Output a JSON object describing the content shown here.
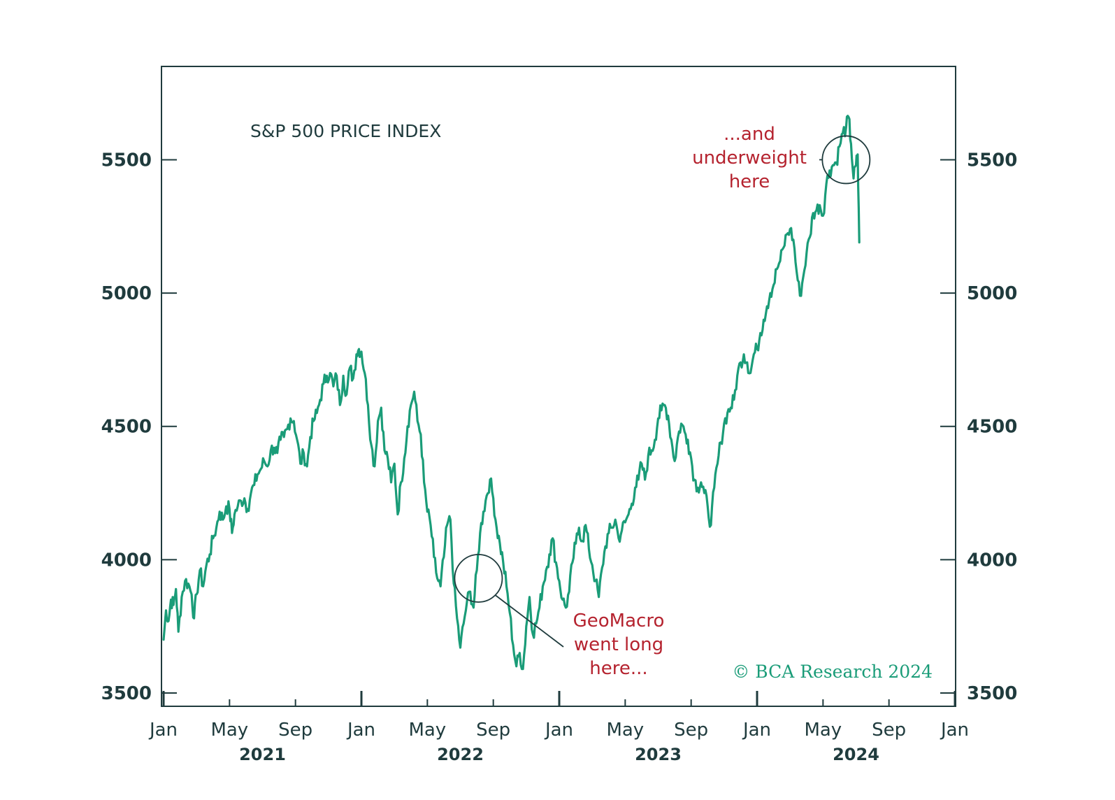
{
  "colors": {
    "series": "#1a9c78",
    "text": "#1f3b3d",
    "annotation": "#b5232f",
    "credit": "#1a9c78"
  },
  "chart_data": {
    "type": "line",
    "title": "S&P 500 PRICE INDEX",
    "xlabel": "",
    "ylabel": "",
    "x_range": [
      "2021-01",
      "2025-01"
    ],
    "ylim": [
      3450,
      5850
    ],
    "yticks": [
      3500,
      4000,
      4500,
      5000,
      5500
    ],
    "ytick_labels": [
      "3500",
      "4000",
      "4500",
      "5000",
      "5500"
    ],
    "xticks": [
      {
        "label": "Jan",
        "t": 0,
        "major": true
      },
      {
        "label": "May",
        "t": 4,
        "major": false
      },
      {
        "label": "Sep",
        "t": 8,
        "major": false
      },
      {
        "label": "Jan",
        "t": 12,
        "major": true
      },
      {
        "label": "May",
        "t": 16,
        "major": false
      },
      {
        "label": "Sep",
        "t": 20,
        "major": false
      },
      {
        "label": "Jan",
        "t": 24,
        "major": true
      },
      {
        "label": "May",
        "t": 28,
        "major": false
      },
      {
        "label": "Sep",
        "t": 32,
        "major": false
      },
      {
        "label": "Jan",
        "t": 36,
        "major": true
      },
      {
        "label": "May",
        "t": 40,
        "major": false
      },
      {
        "label": "Sep",
        "t": 44,
        "major": false
      },
      {
        "label": "Jan",
        "t": 48,
        "major": true
      }
    ],
    "years": [
      {
        "label": "2021",
        "t": 6
      },
      {
        "label": "2022",
        "t": 18
      },
      {
        "label": "2023",
        "t": 30
      },
      {
        "label": "2024",
        "t": 42
      }
    ],
    "grid": false,
    "series": [
      {
        "name": "S&P 500",
        "x_unit": "months since Jan 2021",
        "points": [
          [
            0.0,
            3700
          ],
          [
            0.15,
            3810
          ],
          [
            0.3,
            3770
          ],
          [
            0.45,
            3850
          ],
          [
            0.6,
            3830
          ],
          [
            0.75,
            3890
          ],
          [
            0.9,
            3730
          ],
          [
            1.1,
            3860
          ],
          [
            1.3,
            3920
          ],
          [
            1.5,
            3910
          ],
          [
            1.7,
            3870
          ],
          [
            1.85,
            3780
          ],
          [
            2.0,
            3870
          ],
          [
            2.2,
            3960
          ],
          [
            2.4,
            3900
          ],
          [
            2.6,
            3980
          ],
          [
            2.8,
            4020
          ],
          [
            3.0,
            4080
          ],
          [
            3.2,
            4120
          ],
          [
            3.4,
            4180
          ],
          [
            3.6,
            4150
          ],
          [
            3.8,
            4200
          ],
          [
            4.0,
            4190
          ],
          [
            4.15,
            4100
          ],
          [
            4.3,
            4170
          ],
          [
            4.5,
            4200
          ],
          [
            4.7,
            4220
          ],
          [
            4.9,
            4230
          ],
          [
            5.1,
            4190
          ],
          [
            5.3,
            4250
          ],
          [
            5.5,
            4280
          ],
          [
            5.7,
            4320
          ],
          [
            5.9,
            4340
          ],
          [
            6.1,
            4370
          ],
          [
            6.3,
            4350
          ],
          [
            6.5,
            4410
          ],
          [
            6.7,
            4420
          ],
          [
            6.9,
            4400
          ],
          [
            7.1,
            4450
          ],
          [
            7.3,
            4460
          ],
          [
            7.5,
            4490
          ],
          [
            7.7,
            4530
          ],
          [
            7.9,
            4520
          ],
          [
            8.1,
            4450
          ],
          [
            8.3,
            4360
          ],
          [
            8.5,
            4400
          ],
          [
            8.7,
            4350
          ],
          [
            8.9,
            4460
          ],
          [
            9.1,
            4520
          ],
          [
            9.3,
            4550
          ],
          [
            9.5,
            4600
          ],
          [
            9.7,
            4660
          ],
          [
            9.9,
            4690
          ],
          [
            10.1,
            4700
          ],
          [
            10.3,
            4650
          ],
          [
            10.5,
            4690
          ],
          [
            10.7,
            4580
          ],
          [
            10.9,
            4690
          ],
          [
            11.1,
            4620
          ],
          [
            11.3,
            4720
          ],
          [
            11.5,
            4680
          ],
          [
            11.7,
            4770
          ],
          [
            11.85,
            4790
          ],
          [
            12.0,
            4780
          ],
          [
            12.2,
            4700
          ],
          [
            12.4,
            4580
          ],
          [
            12.6,
            4430
          ],
          [
            12.8,
            4350
          ],
          [
            13.0,
            4520
          ],
          [
            13.2,
            4570
          ],
          [
            13.4,
            4410
          ],
          [
            13.6,
            4380
          ],
          [
            13.8,
            4290
          ],
          [
            14.0,
            4360
          ],
          [
            14.2,
            4170
          ],
          [
            14.4,
            4290
          ],
          [
            14.6,
            4380
          ],
          [
            14.8,
            4500
          ],
          [
            15.0,
            4580
          ],
          [
            15.2,
            4630
          ],
          [
            15.4,
            4520
          ],
          [
            15.6,
            4470
          ],
          [
            15.8,
            4290
          ],
          [
            16.0,
            4180
          ],
          [
            16.2,
            4130
          ],
          [
            16.4,
            4010
          ],
          [
            16.6,
            3930
          ],
          [
            16.8,
            3900
          ],
          [
            17.0,
            4010
          ],
          [
            17.2,
            4130
          ],
          [
            17.4,
            4150
          ],
          [
            17.6,
            3910
          ],
          [
            17.8,
            3780
          ],
          [
            18.0,
            3670
          ],
          [
            18.2,
            3760
          ],
          [
            18.4,
            3840
          ],
          [
            18.6,
            3880
          ],
          [
            18.8,
            3820
          ],
          [
            19.0,
            3960
          ],
          [
            19.2,
            4100
          ],
          [
            19.4,
            4180
          ],
          [
            19.6,
            4240
          ],
          [
            19.8,
            4300
          ],
          [
            20.0,
            4230
          ],
          [
            20.2,
            4120
          ],
          [
            20.4,
            4060
          ],
          [
            20.6,
            3990
          ],
          [
            20.8,
            3900
          ],
          [
            21.0,
            3800
          ],
          [
            21.2,
            3680
          ],
          [
            21.4,
            3600
          ],
          [
            21.6,
            3650
          ],
          [
            21.8,
            3590
          ],
          [
            22.0,
            3750
          ],
          [
            22.2,
            3860
          ],
          [
            22.4,
            3720
          ],
          [
            22.6,
            3760
          ],
          [
            22.8,
            3820
          ],
          [
            23.0,
            3900
          ],
          [
            23.2,
            3960
          ],
          [
            23.4,
            4020
          ],
          [
            23.6,
            4080
          ],
          [
            23.8,
            3990
          ],
          [
            24.0,
            3920
          ],
          [
            24.2,
            3850
          ],
          [
            24.4,
            3820
          ],
          [
            24.6,
            3880
          ],
          [
            24.8,
            3990
          ],
          [
            25.0,
            4060
          ],
          [
            25.2,
            4120
          ],
          [
            25.4,
            4070
          ],
          [
            25.6,
            4130
          ],
          [
            25.8,
            4040
          ],
          [
            26.0,
            3980
          ],
          [
            26.2,
            3920
          ],
          [
            26.4,
            3860
          ],
          [
            26.6,
            3970
          ],
          [
            26.8,
            4050
          ],
          [
            27.0,
            4100
          ],
          [
            27.2,
            4120
          ],
          [
            27.4,
            4150
          ],
          [
            27.6,
            4080
          ],
          [
            27.8,
            4110
          ],
          [
            28.0,
            4140
          ],
          [
            28.2,
            4170
          ],
          [
            28.4,
            4210
          ],
          [
            28.6,
            4270
          ],
          [
            28.8,
            4300
          ],
          [
            29.0,
            4360
          ],
          [
            29.2,
            4300
          ],
          [
            29.4,
            4390
          ],
          [
            29.6,
            4410
          ],
          [
            29.8,
            4450
          ],
          [
            30.0,
            4530
          ],
          [
            30.2,
            4560
          ],
          [
            30.4,
            4580
          ],
          [
            30.6,
            4540
          ],
          [
            30.8,
            4450
          ],
          [
            31.0,
            4370
          ],
          [
            31.2,
            4460
          ],
          [
            31.4,
            4510
          ],
          [
            31.6,
            4480
          ],
          [
            31.8,
            4450
          ],
          [
            32.0,
            4380
          ],
          [
            32.2,
            4300
          ],
          [
            32.4,
            4270
          ],
          [
            32.6,
            4290
          ],
          [
            32.8,
            4250
          ],
          [
            33.0,
            4200
          ],
          [
            33.2,
            4130
          ],
          [
            33.4,
            4270
          ],
          [
            33.6,
            4360
          ],
          [
            33.8,
            4440
          ],
          [
            34.0,
            4510
          ],
          [
            34.2,
            4550
          ],
          [
            34.4,
            4570
          ],
          [
            34.6,
            4600
          ],
          [
            34.8,
            4690
          ],
          [
            35.0,
            4740
          ],
          [
            35.2,
            4770
          ],
          [
            35.4,
            4740
          ],
          [
            35.6,
            4700
          ],
          [
            35.8,
            4770
          ],
          [
            36.0,
            4790
          ],
          [
            36.2,
            4850
          ],
          [
            36.4,
            4900
          ],
          [
            36.6,
            4950
          ],
          [
            36.8,
            5000
          ],
          [
            37.0,
            5030
          ],
          [
            37.2,
            5090
          ],
          [
            37.4,
            5120
          ],
          [
            37.6,
            5170
          ],
          [
            37.8,
            5220
          ],
          [
            38.0,
            5240
          ],
          [
            38.2,
            5200
          ],
          [
            38.4,
            5080
          ],
          [
            38.6,
            4990
          ],
          [
            38.8,
            5060
          ],
          [
            39.0,
            5150
          ],
          [
            39.2,
            5210
          ],
          [
            39.4,
            5300
          ],
          [
            39.6,
            5310
          ],
          [
            39.8,
            5330
          ],
          [
            40.0,
            5290
          ],
          [
            40.2,
            5410
          ],
          [
            40.4,
            5460
          ],
          [
            40.6,
            5480
          ],
          [
            40.8,
            5490
          ],
          [
            41.0,
            5550
          ],
          [
            41.2,
            5600
          ],
          [
            41.4,
            5620
          ],
          [
            41.55,
            5660
          ],
          [
            41.7,
            5560
          ],
          [
            41.85,
            5430
          ],
          [
            42.0,
            5480
          ],
          [
            42.1,
            5520
          ],
          [
            42.2,
            5190
          ]
        ]
      }
    ],
    "annotations": [
      {
        "lines": [
          "GeoMacro",
          "went long",
          "here..."
        ],
        "target": [
          19.1,
          3930
        ]
      },
      {
        "lines": [
          "...and",
          "underweight",
          "here"
        ],
        "target": [
          41.4,
          5500
        ]
      }
    ],
    "credit": "© BCA Research 2024",
    "legend": "none"
  }
}
